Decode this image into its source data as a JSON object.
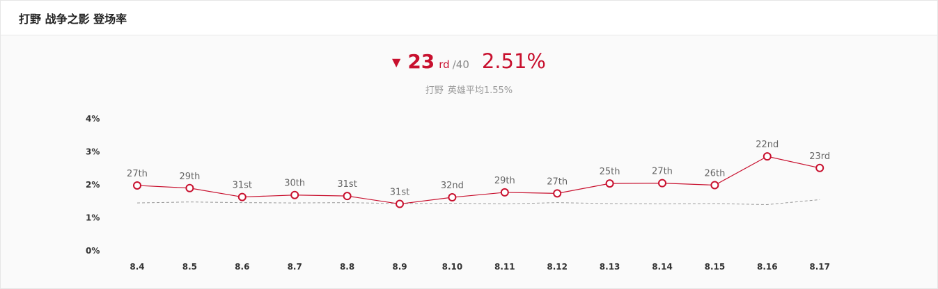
{
  "header": {
    "title": "打野 战争之影 登场率"
  },
  "summary": {
    "trend_icon": "triangle-down-icon",
    "rank": "23",
    "rank_suffix": "rd",
    "rank_total": "/40",
    "rate": "2.51%",
    "avg_role": "打野",
    "avg_text": "英雄平均1.55%"
  },
  "colors": {
    "accent": "#c8102e",
    "average_line": "#999999"
  },
  "chart_data": {
    "type": "line",
    "categories": [
      "8.4",
      "8.5",
      "8.6",
      "8.7",
      "8.8",
      "8.9",
      "8.10",
      "8.11",
      "8.12",
      "8.13",
      "8.14",
      "8.15",
      "8.16",
      "8.17"
    ],
    "y_ticks": [
      "4%",
      "3%",
      "2%",
      "1%",
      "0%"
    ],
    "ylim": [
      0,
      4
    ],
    "grid": false,
    "series": [
      {
        "values": [
          1.98,
          1.9,
          1.63,
          1.69,
          1.66,
          1.42,
          1.62,
          1.77,
          1.74,
          2.04,
          2.05,
          1.99,
          2.86,
          2.51
        ],
        "labels": [
          "27th",
          "29th",
          "31st",
          "30th",
          "31st",
          "31st",
          "32nd",
          "29th",
          "27th",
          "25th",
          "27th",
          "26th",
          "22nd",
          "23rd"
        ],
        "color": "#c8102e",
        "marker": "circle"
      },
      {
        "values": [
          1.45,
          1.48,
          1.46,
          1.45,
          1.46,
          1.43,
          1.44,
          1.42,
          1.46,
          1.43,
          1.42,
          1.43,
          1.4,
          1.55
        ],
        "color": "#999999",
        "style": "dashed"
      }
    ]
  }
}
